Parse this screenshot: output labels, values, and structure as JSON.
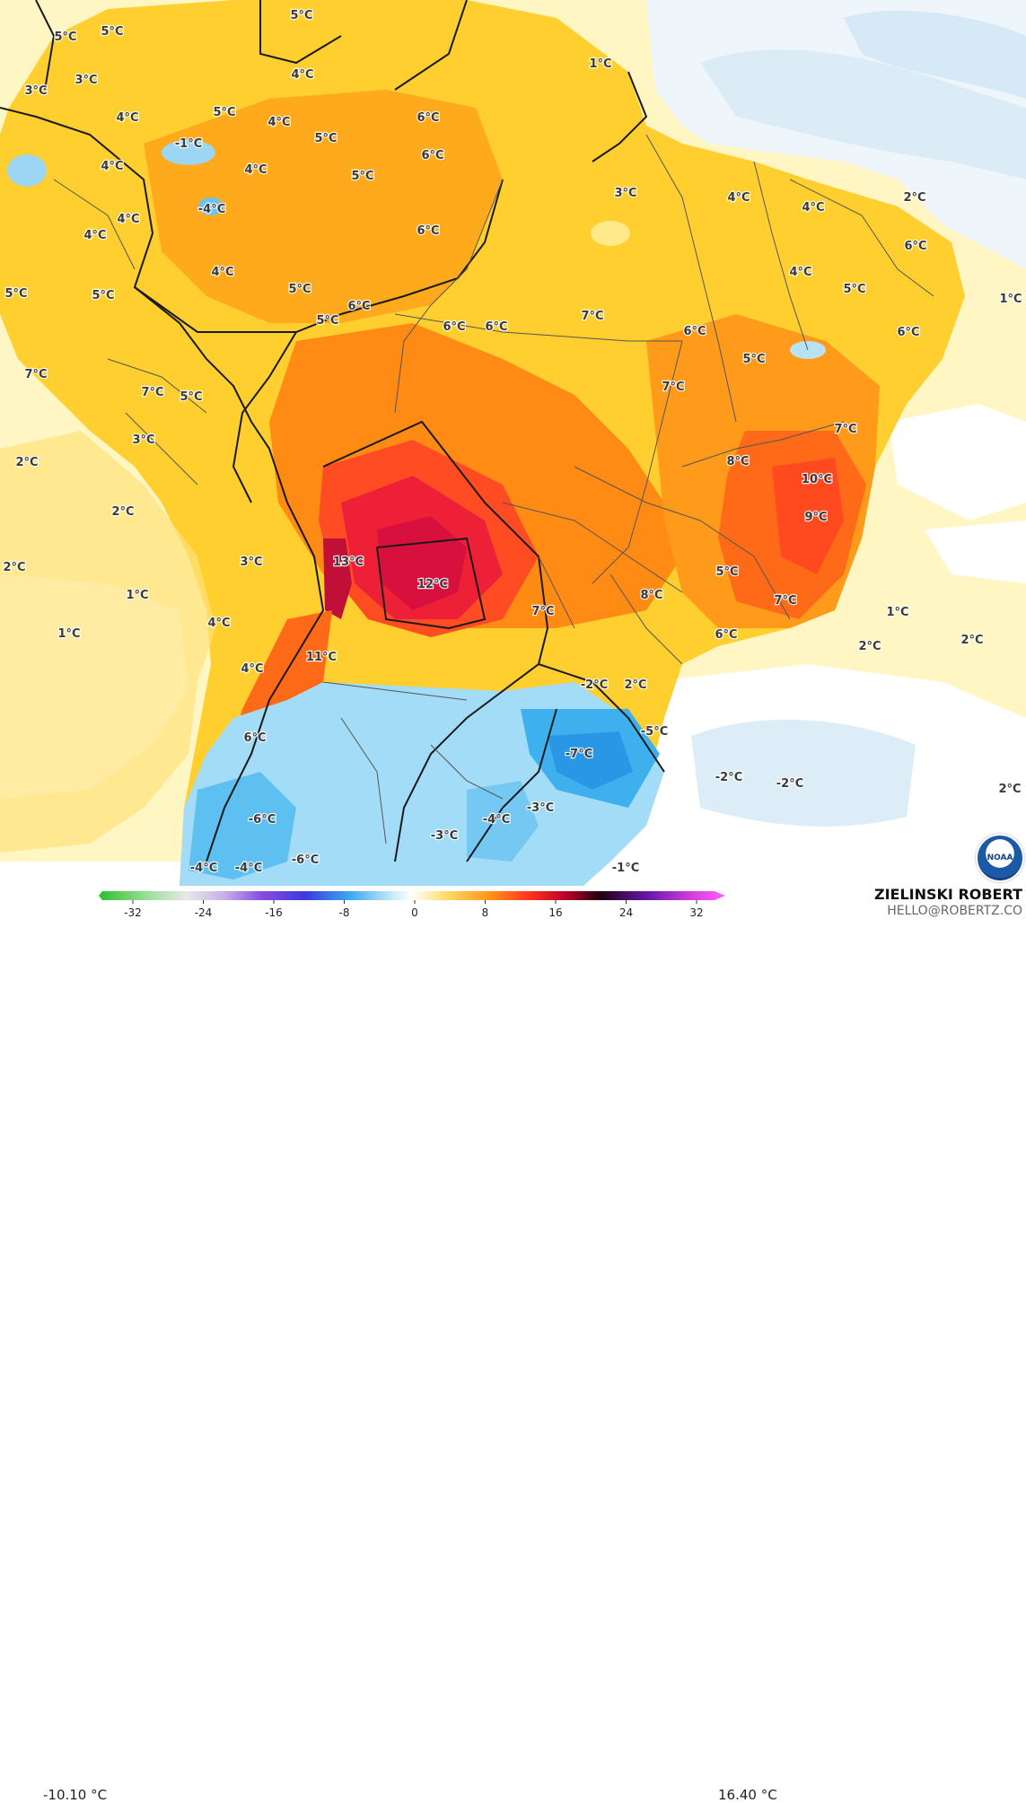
{
  "scale": {
    "min_label": "-10.10 °C",
    "max_label": "16.40 °C",
    "ticks": [
      "-32",
      "-24",
      "-16",
      "-8",
      "0",
      "8",
      "16",
      "24",
      "32"
    ]
  },
  "credit": {
    "name": "ZIELINSKI ROBERT",
    "email": "HELLO@ROBERTZ.CO",
    "logo_text": "NOAA"
  },
  "labels": [
    "5°C",
    "5°C",
    "5°C",
    "3°C",
    "3°C",
    "4°C",
    "4°C",
    "5°C",
    "4°C",
    "5°C",
    "6°C",
    "6°C",
    "-1°C",
    "4°C",
    "4°C",
    "5°C",
    "1°C",
    "4°C",
    "4°C",
    "3°C",
    "6°C",
    "-4°C",
    "2°C",
    "4°C",
    "4°C",
    "5°C",
    "4°C",
    "5°C",
    "5°C",
    "6°C",
    "5°C",
    "6°C",
    "6°C",
    "7°C",
    "6°C",
    "1°C",
    "4°C",
    "5°C",
    "5°C",
    "6°C",
    "7°C",
    "7°C",
    "6°C",
    "5°C",
    "7°C",
    "7°C",
    "3°C",
    "8°C",
    "2°C",
    "10°C",
    "2°C",
    "9°C",
    "2°C",
    "3°C",
    "13°C",
    "12°C",
    "5°C",
    "8°C",
    "7°C",
    "1°C",
    "1°C",
    "4°C",
    "7°C",
    "2°C",
    "1°C",
    "6°C",
    "2°C",
    "4°C",
    "11°C",
    "-2°C",
    "2°C",
    "-5°C",
    "6°C",
    "-7°C",
    "-2°C",
    "-2°C",
    "2°C",
    "-6°C",
    "-3°C",
    "-4°C",
    "-3°C",
    "-6°C",
    "-4°C",
    "-4°C",
    "-1°C"
  ],
  "colors": {
    "ocean": "#fff8c8",
    "cold_ocean": "#ffffff",
    "land_base": "#ffcc22",
    "warm": "#ff9900",
    "hot": "#ff5522",
    "hottest": "#dd1144",
    "cold": "#9ad8f4",
    "colder": "#4ab6ee"
  }
}
